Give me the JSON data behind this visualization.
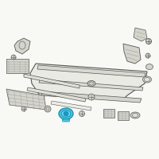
{
  "bg_color": "#f8f8f5",
  "border_color": "#cccccc",
  "line_color": "#999999",
  "dark_line": "#555555",
  "mid_line": "#777777",
  "highlight_color": "#4ec8e8",
  "highlight_dark": "#1a90b0",
  "fig_bg": "#f8f8f5",
  "part_fill": "#e2e2dc",
  "part_fill2": "#d4d4cc",
  "part_fill3": "#eaeae4"
}
